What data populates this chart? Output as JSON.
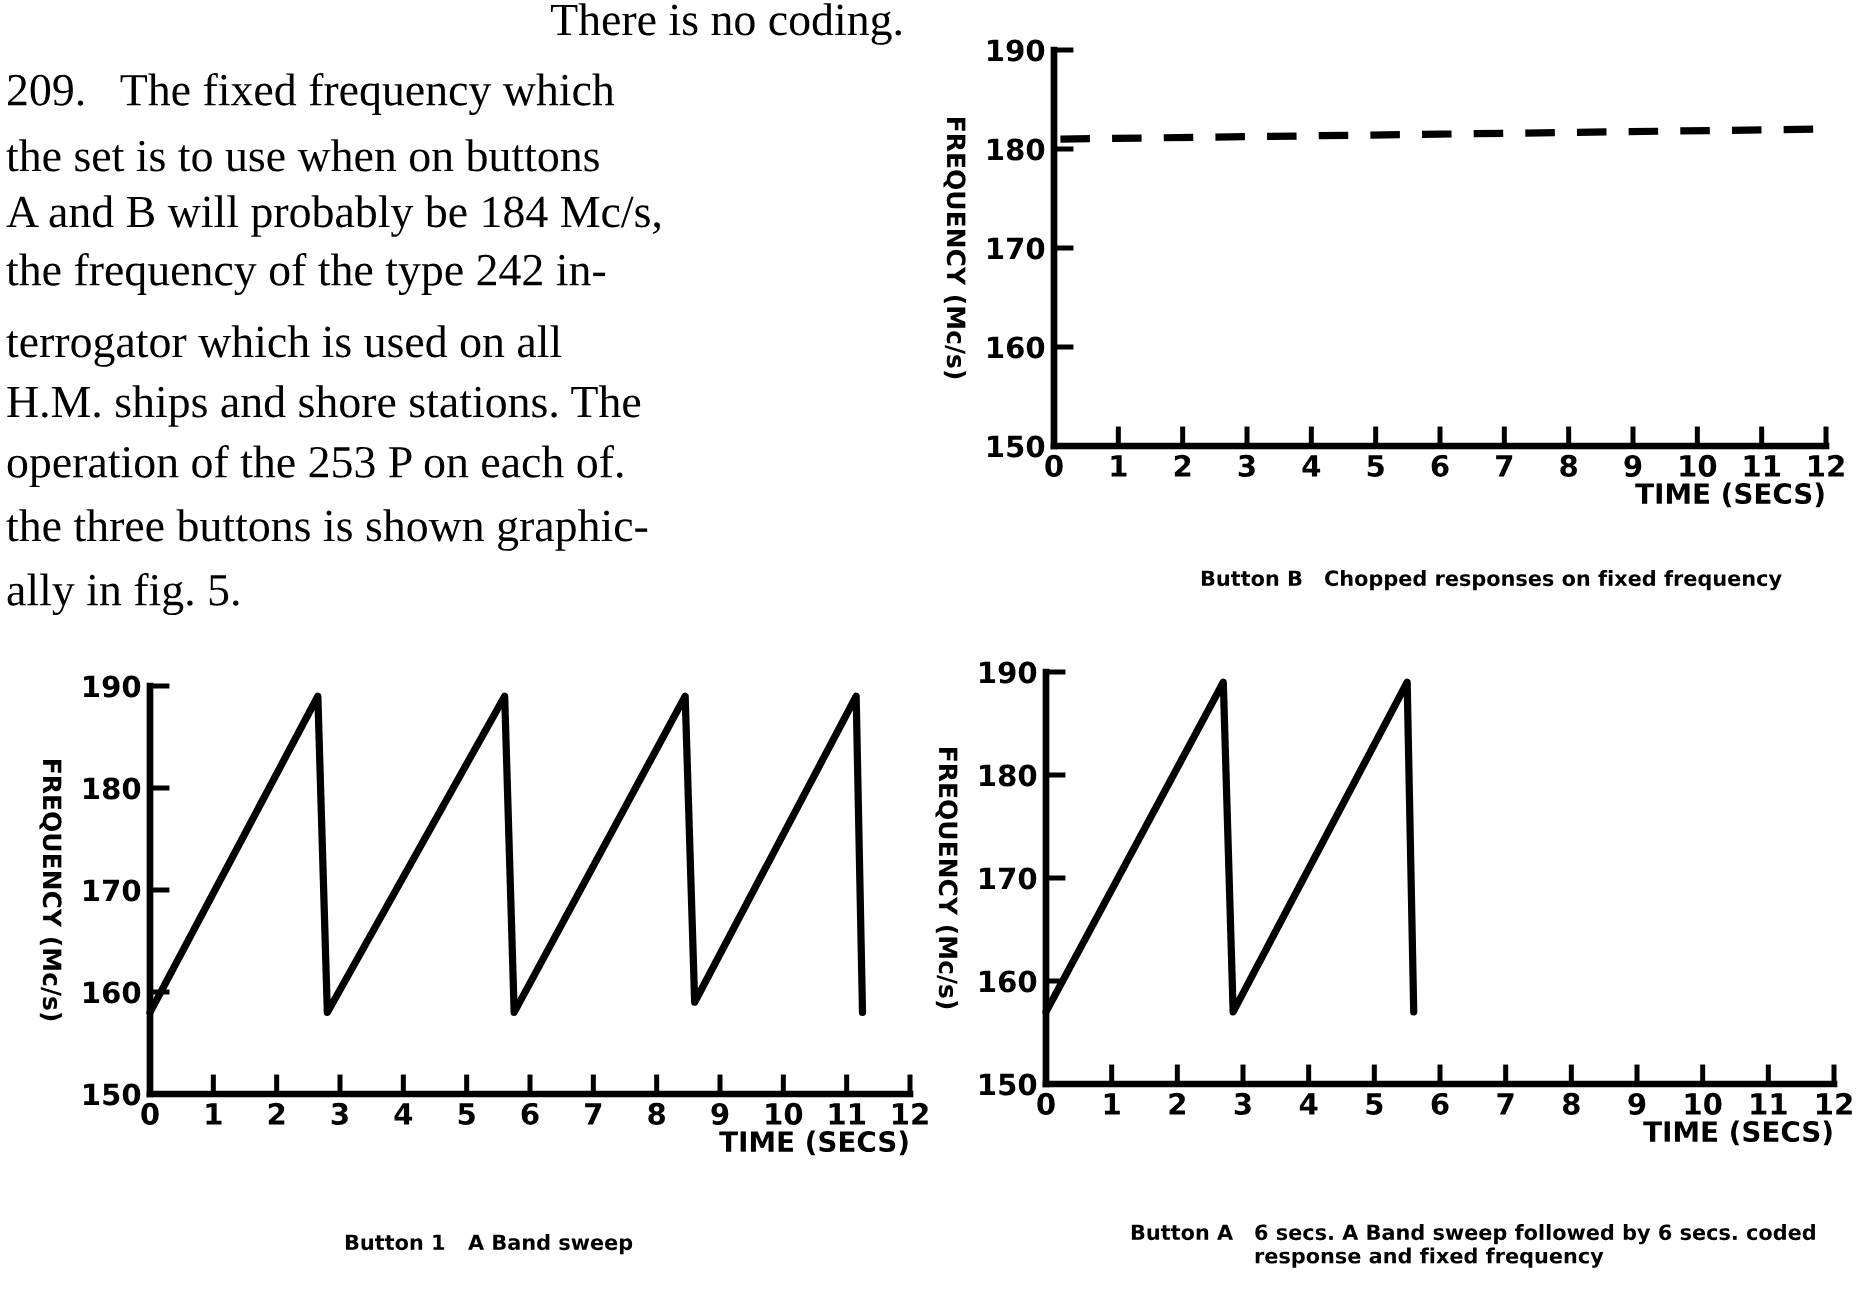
{
  "chart_data": [
    {
      "type": "other",
      "annotations": [
        "There is no coding.",
        "209.   The fixed frequency which",
        "the set is to use when on buttons",
        "A and B will probably be 184 Mc/s,",
        "the frequency of the type 242 in-",
        "terrogator which is used on all",
        "H.M. ships and shore stations. The",
        "operation of the 253 P on each of.",
        "the three buttons is shown graphic-",
        "ally in fig. 5."
      ]
    },
    {
      "type": "line",
      "title": "Button B",
      "subtitle": "Chopped responses on fixed frequency",
      "xlabel": "TIME (SECS)",
      "ylabel": "FREQUENCY (Mc/s)",
      "xlim": [
        0,
        12
      ],
      "ylim": [
        150,
        190
      ],
      "xticks": [
        0,
        1,
        2,
        3,
        4,
        5,
        6,
        7,
        8,
        9,
        10,
        11,
        12
      ],
      "yticks": [
        150,
        160,
        170,
        180,
        190
      ],
      "line_style": "dashed",
      "series": [
        {
          "color": "#000000",
          "x": [
            0.1,
            6,
            11.8
          ],
          "values": [
            181,
            181.5,
            182
          ]
        }
      ]
    },
    {
      "type": "line",
      "title": "Button 1",
      "subtitle": "A Band sweep",
      "xlabel": "TIME (SECS)",
      "ylabel": "FREQUENCY (Mc/s)",
      "xlim": [
        0,
        12
      ],
      "ylim": [
        150,
        190
      ],
      "xticks": [
        0,
        1,
        2,
        3,
        4,
        5,
        6,
        7,
        8,
        9,
        10,
        11,
        12
      ],
      "yticks": [
        150,
        160,
        170,
        180,
        190
      ],
      "line_style": "solid",
      "series": [
        {
          "color": "#000000",
          "x": [
            0,
            2.65,
            2.8,
            5.6,
            5.75,
            8.45,
            8.6,
            11.15,
            11.25
          ],
          "values": [
            158,
            189,
            158,
            189,
            158,
            189,
            159,
            189,
            158
          ]
        }
      ]
    },
    {
      "type": "line",
      "title": "Button A",
      "subtitle": "6 secs. A Band sweep followed by 6 secs. coded response and fixed frequency",
      "xlabel": "TIME (SECS)",
      "ylabel": "FREQUENCY (Mc/s)",
      "xlim": [
        0,
        12
      ],
      "ylim": [
        150,
        190
      ],
      "xticks": [
        0,
        1,
        2,
        3,
        4,
        5,
        6,
        7,
        8,
        9,
        10,
        11,
        12
      ],
      "yticks": [
        150,
        160,
        170,
        180,
        190
      ],
      "line_style": "solid",
      "series": [
        {
          "color": "#000000",
          "x": [
            0,
            2.7,
            2.85,
            5.5,
            5.6
          ],
          "values": [
            157,
            189,
            157,
            189,
            157
          ]
        }
      ]
    }
  ]
}
